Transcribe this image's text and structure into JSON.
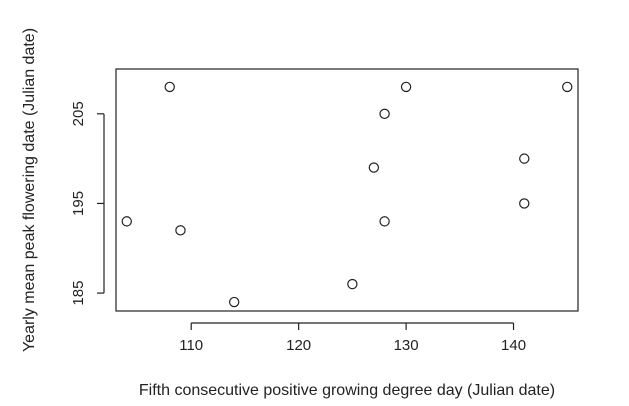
{
  "chart_data": {
    "type": "scatter",
    "title": "",
    "xlabel": "Fifth consecutive positive growing degree day (Julian date)",
    "ylabel": "Yearly mean peak flowering date (Julian date)",
    "xlim": [
      103,
      146
    ],
    "ylim": [
      183,
      210
    ],
    "xticks": [
      110,
      120,
      130,
      140
    ],
    "yticks": [
      185,
      195,
      205
    ],
    "grid": false,
    "legend": "none",
    "marker": "open-circle",
    "points": [
      {
        "x": 104,
        "y": 193
      },
      {
        "x": 108,
        "y": 208
      },
      {
        "x": 109,
        "y": 192
      },
      {
        "x": 114,
        "y": 184
      },
      {
        "x": 125,
        "y": 186
      },
      {
        "x": 127,
        "y": 199
      },
      {
        "x": 128,
        "y": 193
      },
      {
        "x": 128,
        "y": 205
      },
      {
        "x": 130,
        "y": 208
      },
      {
        "x": 141,
        "y": 195
      },
      {
        "x": 141,
        "y": 200
      },
      {
        "x": 145,
        "y": 208
      }
    ]
  },
  "colors": {
    "axis": "#222222",
    "marker": "#222222",
    "background": "#ffffff"
  }
}
